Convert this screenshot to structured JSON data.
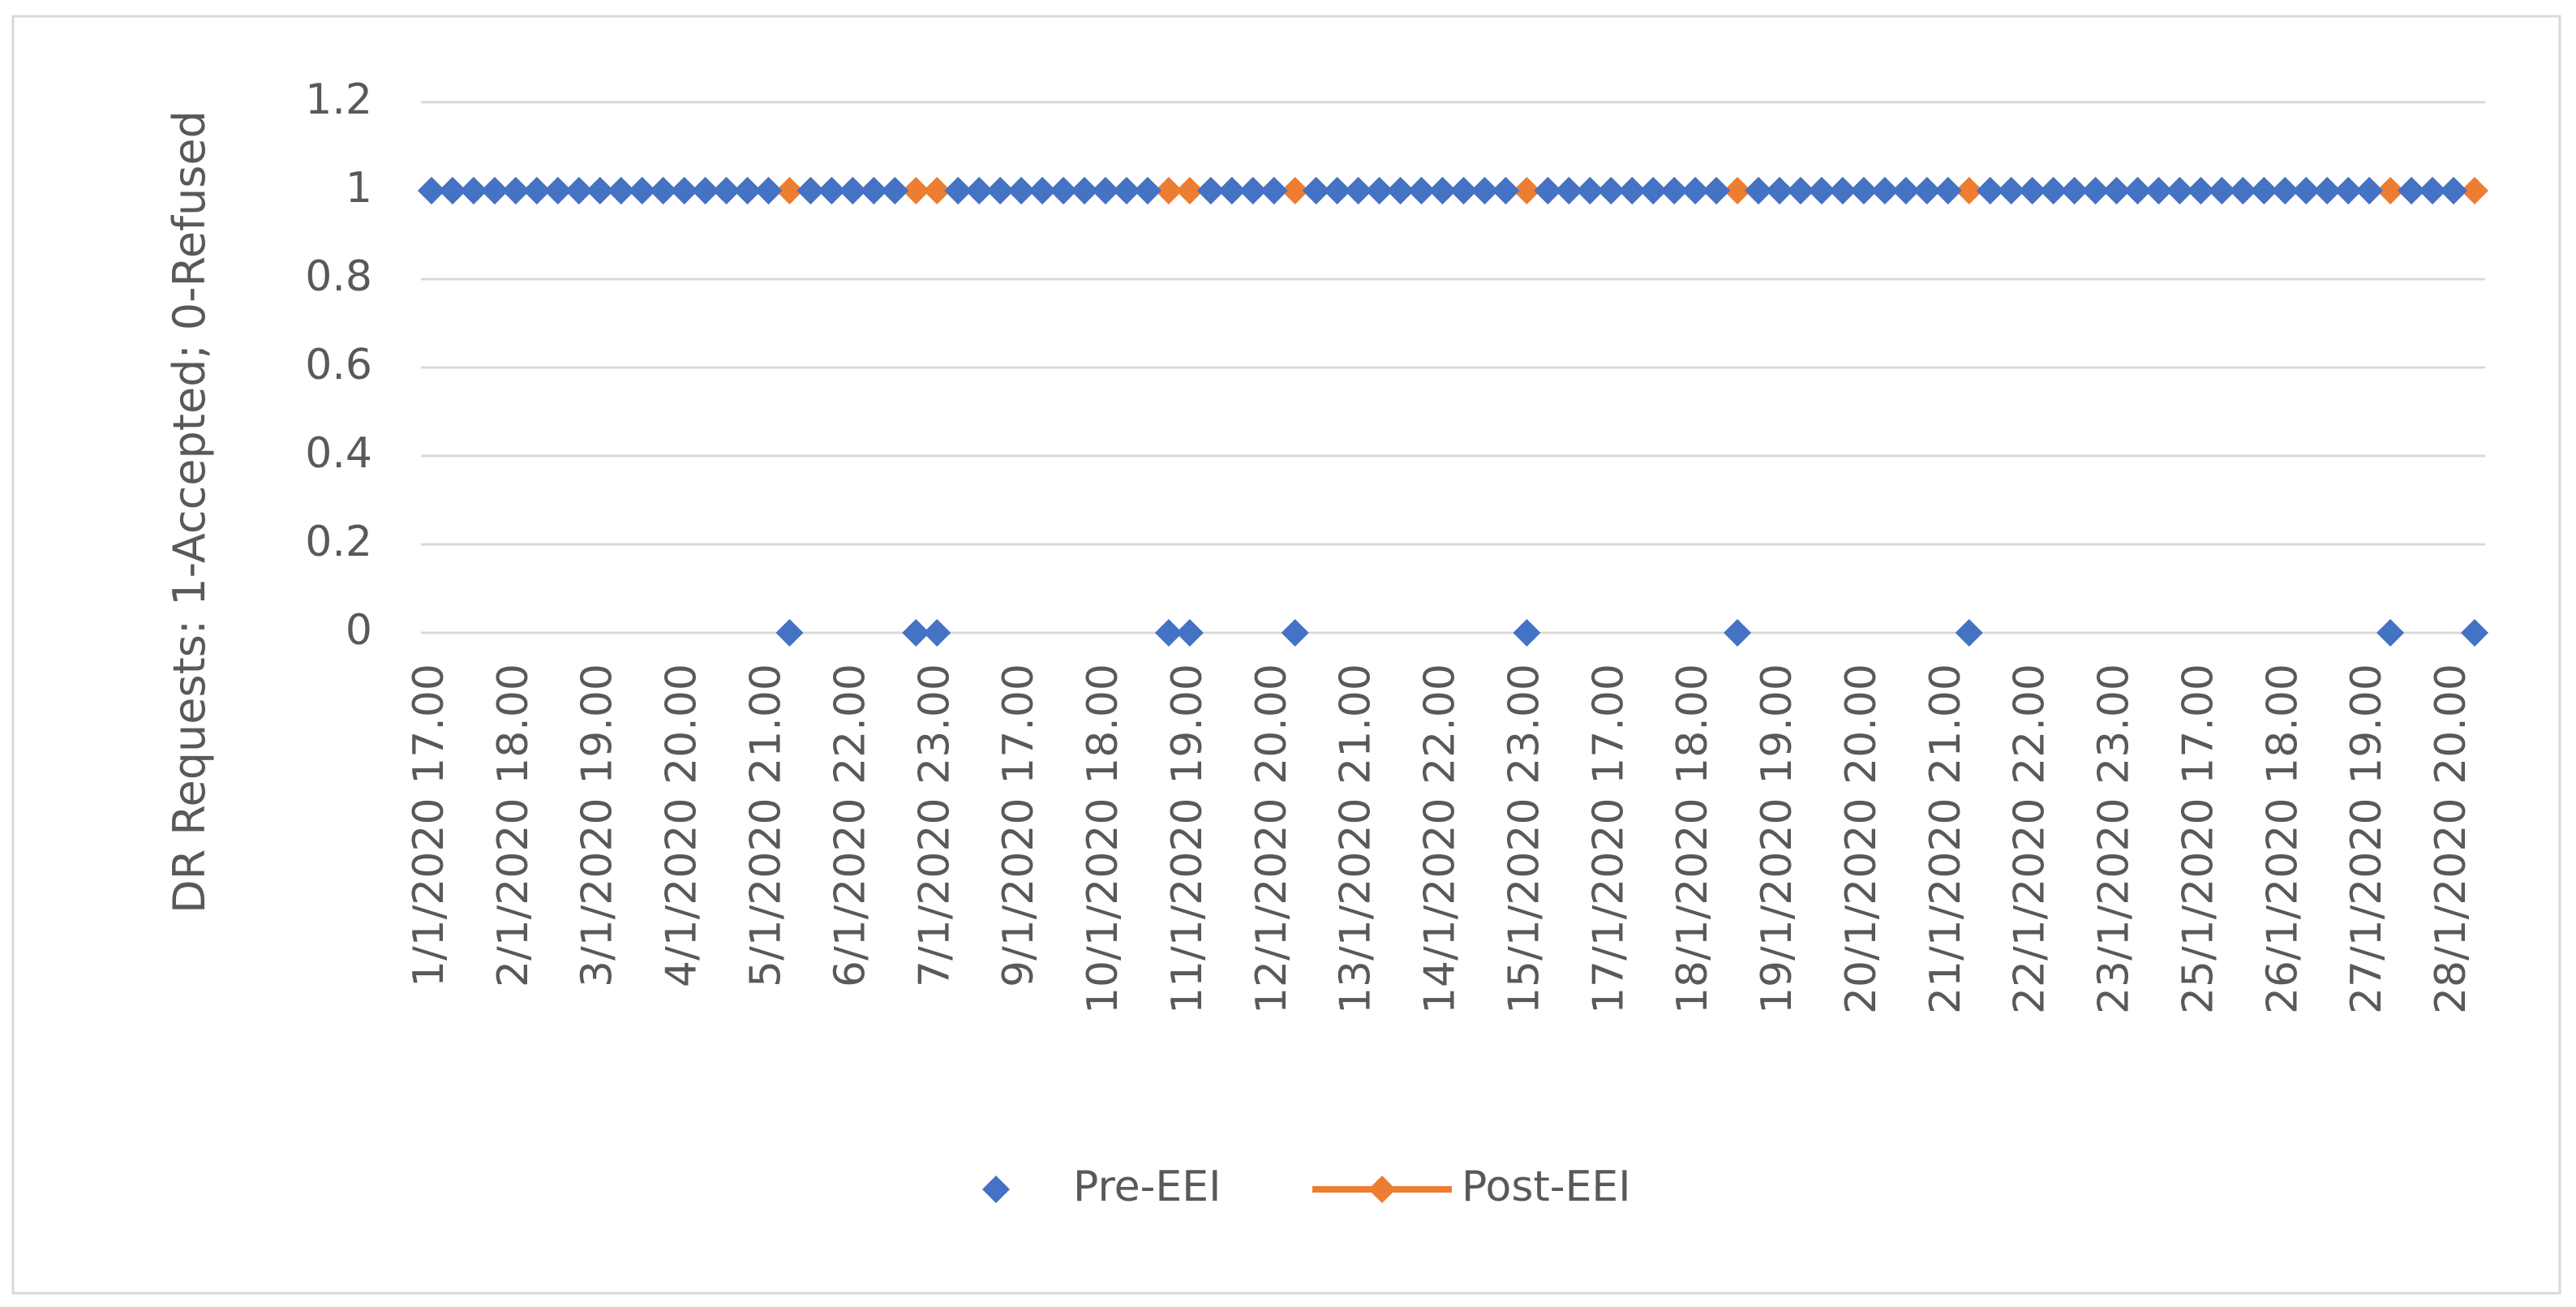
{
  "chart_data": {
    "type": "line",
    "y_label": "DR Requests: 1-Accepted; 0-Refused",
    "categories": [
      "1/1/2020 17.00",
      null,
      null,
      null,
      "2/1/2020 18.00",
      null,
      null,
      null,
      "3/1/2020 19.00",
      null,
      null,
      null,
      "4/1/2020 20.00",
      null,
      null,
      null,
      "5/1/2020 21.00",
      null,
      null,
      null,
      "6/1/2020 22.00",
      null,
      null,
      null,
      "7/1/2020 23.00",
      null,
      null,
      null,
      "9/1/2020 17.00",
      null,
      null,
      null,
      "10/1/2020 18.00",
      null,
      null,
      null,
      "11/1/2020 19.00",
      null,
      null,
      null,
      "12/1/2020 20.00",
      null,
      null,
      null,
      "13/1/2020 21.00",
      null,
      null,
      null,
      "14/1/2020 22.00",
      null,
      null,
      null,
      "15/1/2020 23.00",
      null,
      null,
      null,
      "17/1/2020 17.00",
      null,
      null,
      null,
      "18/1/2020 18.00",
      null,
      null,
      null,
      "19/1/2020 19.00",
      null,
      null,
      null,
      "20/1/2020 20.00",
      null,
      null,
      null,
      "21/1/2020 21.00",
      null,
      null,
      null,
      "22/1/2020 22.00",
      null,
      null,
      null,
      "23/1/2020 23.00",
      null,
      null,
      null,
      "25/1/2020 17.00",
      null,
      null,
      null,
      "26/1/2020 18.00",
      null,
      null,
      null,
      "27/1/2020 19.00",
      null,
      null,
      null,
      "28/1/2020 20.00",
      null
    ],
    "series": [
      {
        "name": "Pre-EEI",
        "color": "#4472c4",
        "show_line": false,
        "values": [
          1,
          1,
          1,
          1,
          1,
          1,
          1,
          1,
          1,
          1,
          1,
          1,
          1,
          1,
          1,
          1,
          1,
          0,
          1,
          1,
          1,
          1,
          1,
          0,
          0,
          1,
          1,
          1,
          1,
          1,
          1,
          1,
          1,
          1,
          1,
          0,
          0,
          1,
          1,
          1,
          1,
          0,
          1,
          1,
          1,
          1,
          1,
          1,
          1,
          1,
          1,
          1,
          0,
          1,
          1,
          1,
          1,
          1,
          1,
          1,
          1,
          1,
          0,
          1,
          1,
          1,
          1,
          1,
          1,
          1,
          1,
          1,
          1,
          0,
          1,
          1,
          1,
          1,
          1,
          1,
          1,
          1,
          1,
          1,
          1,
          1,
          1,
          1,
          1,
          1,
          1,
          1,
          1,
          0,
          1,
          1,
          1,
          0
        ]
      },
      {
        "name": "Post-EEI",
        "color": "#ed7d31",
        "show_line": true,
        "values": [
          1,
          1,
          1,
          1,
          1,
          1,
          1,
          1,
          1,
          1,
          1,
          1,
          1,
          1,
          1,
          1,
          1,
          1,
          1,
          1,
          1,
          1,
          1,
          1,
          1,
          1,
          1,
          1,
          1,
          1,
          1,
          1,
          1,
          1,
          1,
          1,
          1,
          1,
          1,
          1,
          1,
          1,
          1,
          1,
          1,
          1,
          1,
          1,
          1,
          1,
          1,
          1,
          1,
          1,
          1,
          1,
          1,
          1,
          1,
          1,
          1,
          1,
          1,
          1,
          1,
          1,
          1,
          1,
          1,
          1,
          1,
          1,
          1,
          1,
          1,
          1,
          1,
          1,
          1,
          1,
          1,
          1,
          1,
          1,
          1,
          1,
          1,
          1,
          1,
          1,
          1,
          1,
          1,
          1,
          1,
          1,
          1,
          1
        ]
      }
    ],
    "ylim": [
      0,
      1.2
    ],
    "yticks": [
      0,
      0.2,
      0.4,
      0.6,
      0.8,
      1,
      1.2
    ],
    "grid": true,
    "legend": "bottom"
  }
}
